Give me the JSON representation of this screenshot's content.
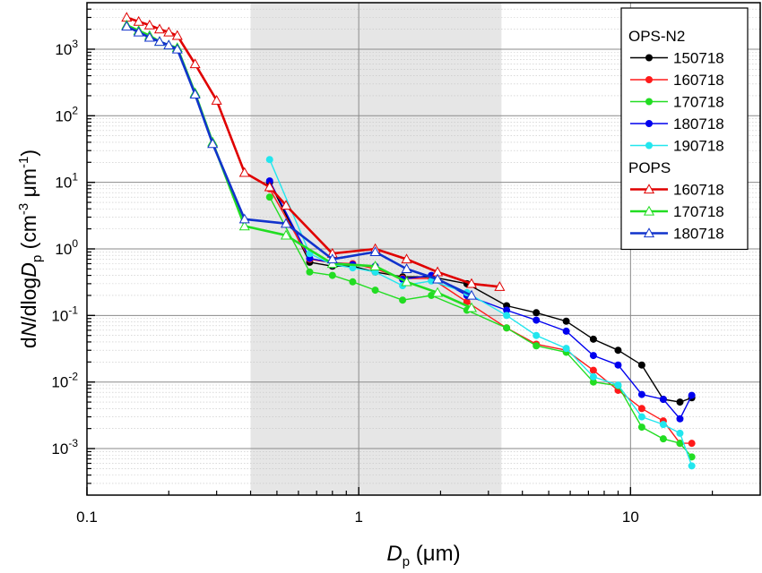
{
  "chart_data": {
    "type": "line",
    "xlabel": {
      "main": "D",
      "sub": "p",
      "unit": " (μm)"
    },
    "ylabel": {
      "part1": "d",
      "N": "N",
      "part2": "/dlog",
      "D": "D",
      "sub": "p",
      "part3": " (cm",
      "exp1": "-3",
      "part4": " μm",
      "exp2": "-1",
      "part5": ")"
    },
    "x_scale": "log",
    "y_scale": "log",
    "xlim": [
      0.1,
      30
    ],
    "ylim": [
      0.0002,
      5000
    ],
    "x_ticks": [
      {
        "v": 0.1,
        "label": "0.1"
      },
      {
        "v": 1,
        "label": "1"
      },
      {
        "v": 10,
        "label": "10"
      }
    ],
    "y_ticks": [
      {
        "v": 0.001,
        "base": "10",
        "exp": "-3"
      },
      {
        "v": 0.01,
        "base": "10",
        "exp": "-2"
      },
      {
        "v": 0.1,
        "base": "10",
        "exp": "-1"
      },
      {
        "v": 1,
        "base": "10",
        "exp": "0"
      },
      {
        "v": 10,
        "base": "10",
        "exp": "1"
      },
      {
        "v": 100,
        "base": "10",
        "exp": "2"
      },
      {
        "v": 1000,
        "base": "10",
        "exp": "3"
      }
    ],
    "grid": true,
    "shaded_region": [
      0.4,
      3.35
    ],
    "legend_position": "top-right",
    "legend_groups": [
      {
        "title": "OPS-N2",
        "names": [
          "150718",
          "160718",
          "170718",
          "180718",
          "190718"
        ],
        "marker": "circle"
      },
      {
        "title": "POPS",
        "names": [
          "160718",
          "170718",
          "180718"
        ],
        "marker": "triangle"
      }
    ],
    "series": [
      {
        "name": "150718",
        "group": "OPS-N2",
        "color": "#000000",
        "marker": "circle",
        "points": [
          [
            0.47,
            10
          ],
          [
            0.66,
            0.63
          ],
          [
            0.8,
            0.55
          ],
          [
            0.95,
            0.55
          ],
          [
            1.15,
            0.45
          ],
          [
            1.45,
            0.38
          ],
          [
            1.85,
            0.38
          ],
          [
            2.5,
            0.3
          ],
          [
            3.5,
            0.14
          ],
          [
            4.5,
            0.11
          ],
          [
            5.8,
            0.082
          ],
          [
            7.3,
            0.044
          ],
          [
            9,
            0.03
          ],
          [
            11,
            0.018
          ],
          [
            13.2,
            0.0055
          ],
          [
            15.2,
            0.005
          ],
          [
            16.8,
            0.0058
          ]
        ]
      },
      {
        "name": "160718",
        "group": "OPS-N2",
        "color": "#ff1a1a",
        "marker": "circle",
        "points": [
          [
            0.47,
            8
          ],
          [
            0.66,
            0.7
          ],
          [
            0.8,
            0.62
          ],
          [
            0.95,
            0.6
          ],
          [
            1.15,
            0.5
          ],
          [
            1.45,
            0.36
          ],
          [
            1.85,
            0.36
          ],
          [
            2.5,
            0.16
          ],
          [
            3.5,
            0.065
          ],
          [
            4.5,
            0.037
          ],
          [
            5.8,
            0.03
          ],
          [
            7.3,
            0.015
          ],
          [
            9,
            0.0075
          ],
          [
            11,
            0.004
          ],
          [
            13.2,
            0.0026
          ],
          [
            15.2,
            0.0012
          ],
          [
            16.8,
            0.0012
          ]
        ]
      },
      {
        "name": "170718",
        "group": "OPS-N2",
        "color": "#22dd22",
        "marker": "circle",
        "points": [
          [
            0.47,
            6
          ],
          [
            0.66,
            0.45
          ],
          [
            0.8,
            0.4
          ],
          [
            0.95,
            0.32
          ],
          [
            1.15,
            0.24
          ],
          [
            1.45,
            0.17
          ],
          [
            1.85,
            0.2
          ],
          [
            2.5,
            0.12
          ],
          [
            3.5,
            0.065
          ],
          [
            4.5,
            0.035
          ],
          [
            5.8,
            0.028
          ],
          [
            7.3,
            0.01
          ],
          [
            9,
            0.0088
          ],
          [
            11,
            0.0021
          ],
          [
            13.2,
            0.0014
          ],
          [
            15.2,
            0.0012
          ],
          [
            16.8,
            0.00075
          ]
        ]
      },
      {
        "name": "180718",
        "group": "OPS-N2",
        "color": "#0000ee",
        "marker": "circle",
        "points": [
          [
            0.47,
            10.5
          ],
          [
            0.66,
            0.72
          ],
          [
            0.8,
            0.62
          ],
          [
            0.95,
            0.58
          ],
          [
            1.15,
            0.55
          ],
          [
            1.45,
            0.35
          ],
          [
            1.85,
            0.4
          ],
          [
            2.5,
            0.2
          ],
          [
            3.5,
            0.12
          ],
          [
            4.5,
            0.085
          ],
          [
            5.8,
            0.058
          ],
          [
            7.3,
            0.025
          ],
          [
            9,
            0.018
          ],
          [
            11,
            0.0065
          ],
          [
            13.2,
            0.0055
          ],
          [
            15.2,
            0.0028
          ],
          [
            16.8,
            0.0063
          ]
        ]
      },
      {
        "name": "190718",
        "group": "OPS-N2",
        "color": "#22e6ee",
        "marker": "circle",
        "points": [
          [
            0.47,
            22
          ],
          [
            0.66,
            0.85
          ],
          [
            0.8,
            0.58
          ],
          [
            0.95,
            0.52
          ],
          [
            1.15,
            0.45
          ],
          [
            1.45,
            0.28
          ],
          [
            1.85,
            0.33
          ],
          [
            2.5,
            0.22
          ],
          [
            3.5,
            0.1
          ],
          [
            4.5,
            0.05
          ],
          [
            5.8,
            0.032
          ],
          [
            7.3,
            0.012
          ],
          [
            9,
            0.009
          ],
          [
            11,
            0.003
          ],
          [
            13.2,
            0.0023
          ],
          [
            15.2,
            0.0017
          ],
          [
            16.8,
            0.00055
          ]
        ]
      },
      {
        "name": "160718",
        "group": "POPS",
        "color": "#e00000",
        "marker": "triangle",
        "points": [
          [
            0.14,
            3000
          ],
          [
            0.155,
            2600
          ],
          [
            0.17,
            2300
          ],
          [
            0.185,
            2000
          ],
          [
            0.2,
            1800
          ],
          [
            0.215,
            1600
          ],
          [
            0.25,
            600
          ],
          [
            0.3,
            170
          ],
          [
            0.38,
            14
          ],
          [
            0.47,
            8.5
          ],
          [
            0.54,
            4.5
          ],
          [
            0.8,
            0.85
          ],
          [
            1.15,
            1.0
          ],
          [
            1.5,
            0.7
          ],
          [
            1.95,
            0.45
          ],
          [
            2.6,
            0.3
          ],
          [
            3.3,
            0.27
          ]
        ]
      },
      {
        "name": "170718",
        "group": "POPS",
        "color": "#22dd22",
        "marker": "triangle",
        "points": [
          [
            0.14,
            2300
          ],
          [
            0.155,
            1900
          ],
          [
            0.17,
            1600
          ],
          [
            0.185,
            1300
          ],
          [
            0.2,
            1150
          ],
          [
            0.215,
            1050
          ],
          [
            0.25,
            220
          ],
          [
            0.29,
            40
          ],
          [
            0.38,
            2.2
          ],
          [
            0.54,
            1.6
          ],
          [
            0.8,
            0.6
          ],
          [
            1.15,
            0.55
          ],
          [
            1.5,
            0.32
          ],
          [
            1.95,
            0.22
          ],
          [
            2.6,
            0.13
          ]
        ]
      },
      {
        "name": "180718",
        "group": "POPS",
        "color": "#1133cc",
        "marker": "triangle",
        "points": [
          [
            0.14,
            2200
          ],
          [
            0.155,
            1800
          ],
          [
            0.17,
            1500
          ],
          [
            0.185,
            1300
          ],
          [
            0.2,
            1150
          ],
          [
            0.215,
            1000
          ],
          [
            0.25,
            210
          ],
          [
            0.29,
            38
          ],
          [
            0.38,
            2.8
          ],
          [
            0.54,
            2.4
          ],
          [
            0.8,
            0.7
          ],
          [
            1.15,
            0.9
          ],
          [
            1.5,
            0.5
          ],
          [
            1.95,
            0.35
          ],
          [
            2.6,
            0.2
          ]
        ]
      }
    ]
  }
}
